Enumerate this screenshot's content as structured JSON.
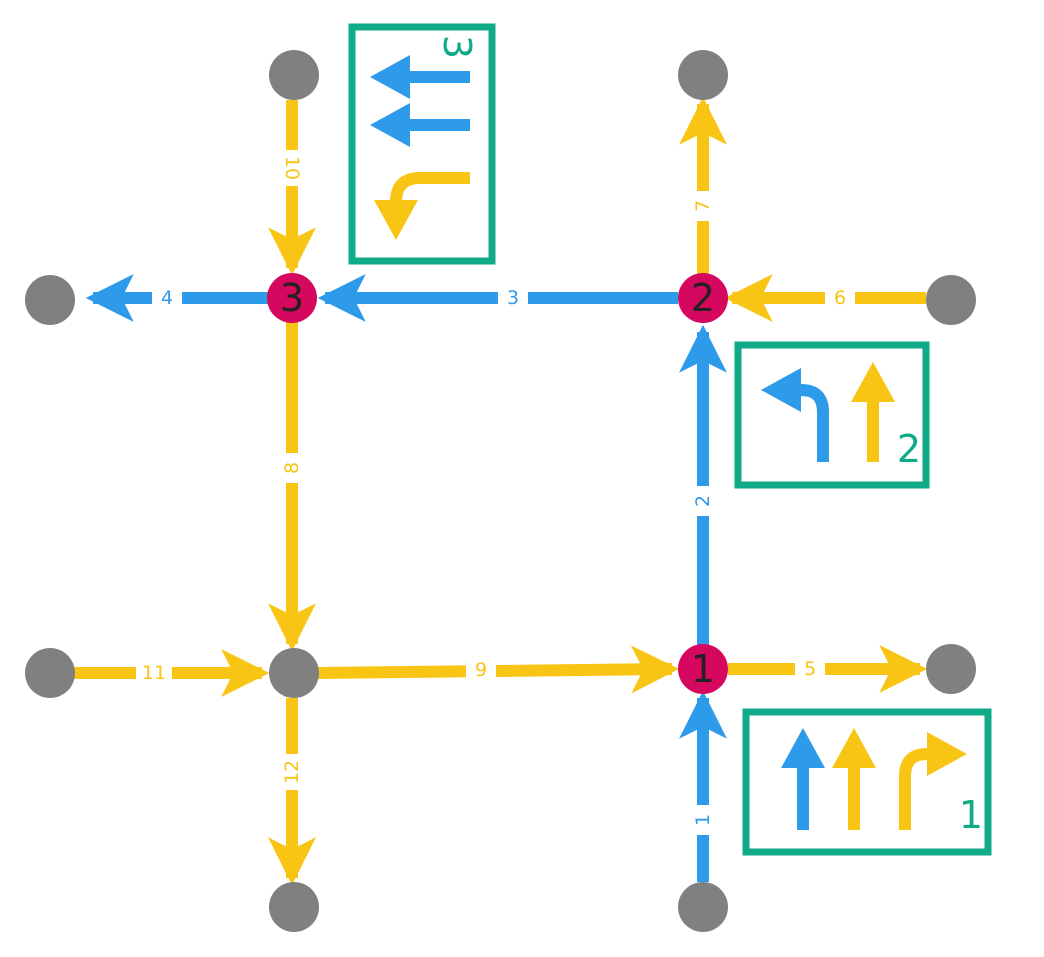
{
  "colors": {
    "blue": "#2E9BEA",
    "yellow": "#F9C514",
    "node_gray": "#808080",
    "node_red": "#D6075E",
    "box_green": "#0FAA88",
    "text_dark": "#222222"
  },
  "nodes": {
    "1": {
      "label": "1"
    },
    "2": {
      "label": "2"
    },
    "3": {
      "label": "3"
    }
  },
  "edges": {
    "1": {
      "label": "1",
      "color": "blue"
    },
    "2": {
      "label": "2",
      "color": "blue"
    },
    "3": {
      "label": "3",
      "color": "blue"
    },
    "4": {
      "label": "4",
      "color": "blue"
    },
    "5": {
      "label": "5",
      "color": "yellow"
    },
    "6": {
      "label": "6",
      "color": "yellow"
    },
    "7": {
      "label": "7",
      "color": "yellow"
    },
    "8": {
      "label": "8",
      "color": "yellow"
    },
    "9": {
      "label": "9",
      "color": "yellow"
    },
    "10": {
      "label": "10",
      "color": "yellow"
    },
    "11": {
      "label": "11",
      "color": "yellow"
    },
    "12": {
      "label": "12",
      "color": "yellow"
    }
  },
  "lane_boxes": {
    "1": {
      "label": "1",
      "lanes": [
        "straight-blue",
        "straight-yellow",
        "right-turn-yellow"
      ]
    },
    "2": {
      "label": "2",
      "lanes": [
        "left-turn-blue",
        "straight-yellow"
      ]
    },
    "3": {
      "label": "3",
      "lanes": [
        "straight-blue",
        "straight-blue",
        "left-turn-yellow"
      ]
    }
  }
}
